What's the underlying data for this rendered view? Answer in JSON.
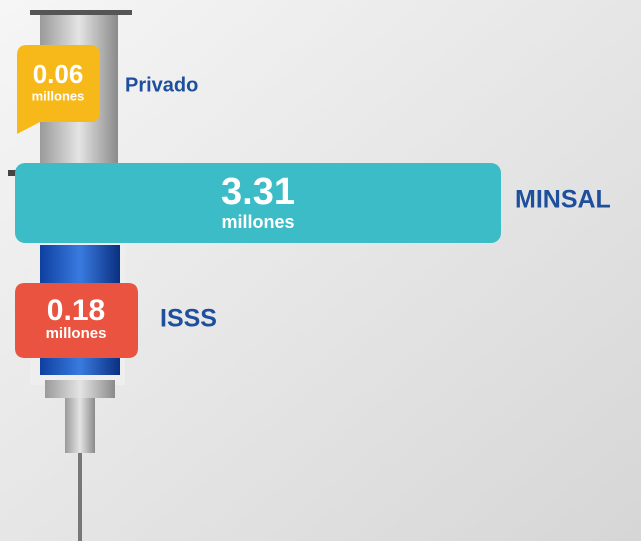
{
  "items": [
    {
      "value": 0.06,
      "unit": "millones",
      "name": "Privado"
    },
    {
      "value": 3.31,
      "unit": "millones",
      "name": "MINSAL"
    },
    {
      "value": 0.18,
      "unit": "millones",
      "name": "ISSS"
    }
  ]
}
